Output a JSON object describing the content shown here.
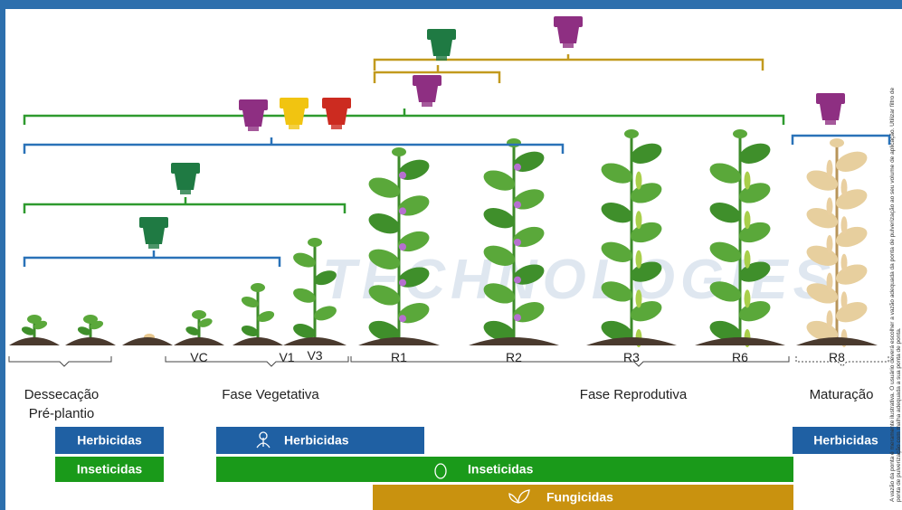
{
  "stages": [
    "VC",
    "V1",
    "V3",
    "R1",
    "R2",
    "R3",
    "R6",
    "R8"
  ],
  "phases": [
    [
      "Dessecação",
      "Pré-plantio"
    ],
    [
      "Fase Vegetativa"
    ],
    [
      "Fase Reprodutiva"
    ],
    [
      "Maturação"
    ]
  ],
  "applications": [
    "Herbicidas",
    "Inseticidas",
    "Herbicidas",
    "Inseticidas",
    "Fungicidas",
    "Herbicidas"
  ],
  "watermark": "TECHNOLOGIES",
  "disclaimer": [
    "A vazão da ponta é meramente ilustrativa. O usuário deverá escolher a vazão adequada da ponta de pulverização ao seu volume de aplicação. Utilizar filtro de",
    "ponta de pulverização com malha adequada a sua ponta de ponta."
  ]
}
